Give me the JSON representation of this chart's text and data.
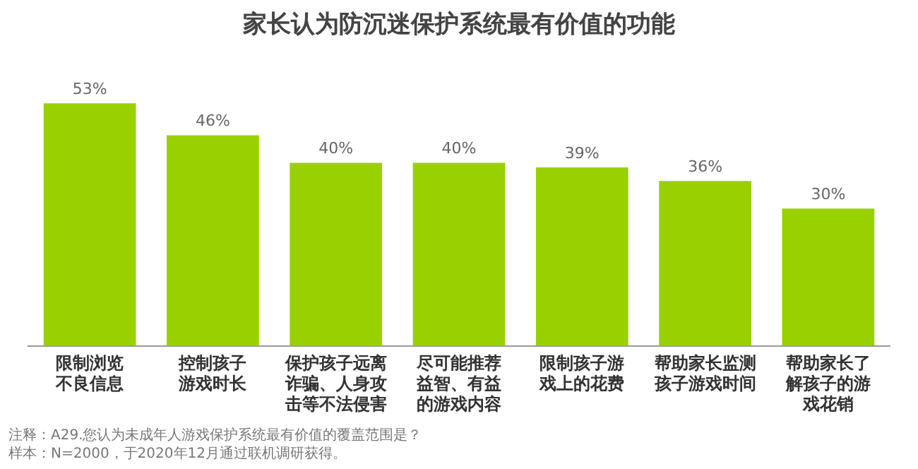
{
  "chart_data": {
    "type": "bar",
    "title": "家长认为防沉迷保护系统最有价值的功能",
    "categories": [
      "限制浏览不良信息",
      "控制孩子游戏时长",
      "保护孩子远离诈骗、人身攻击等不法侵害",
      "尽可能推荐益智、有益的游戏内容",
      "限制孩子游戏上的花费",
      "帮助家长监测孩子游戏时间",
      "帮助家长了解孩子的游戏花销"
    ],
    "values": [
      53,
      46,
      40,
      40,
      39,
      36,
      30
    ],
    "value_labels": [
      "53%",
      "46%",
      "40%",
      "40%",
      "39%",
      "36%",
      "30%"
    ],
    "color": "#99d100",
    "grid": false,
    "legend": false,
    "annotations": [
      "注释：A29.您认为未成年人游戏保护系统最有价值的覆盖范围是？",
      "样本：N=2000，于2020年12月通过联机调研获得。"
    ]
  }
}
